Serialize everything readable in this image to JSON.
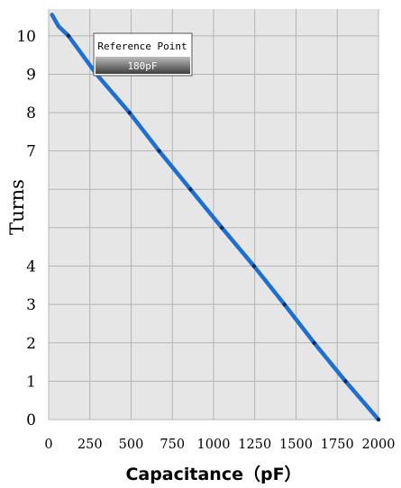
{
  "chart_data": {
    "type": "line",
    "title": "",
    "xlabel": "Capacitance（pF）",
    "ylabel": "Turns",
    "xlim": [
      0,
      2000
    ],
    "ylim": [
      0,
      10.7
    ],
    "grid": true,
    "x_ticks": [
      "0",
      "250",
      "500",
      "750",
      "1000",
      "1250",
      "1500",
      "1750",
      "2000"
    ],
    "y_ticks": [
      {
        "value": 0,
        "label": "0"
      },
      {
        "value": 1,
        "label": "1"
      },
      {
        "value": 2,
        "label": "2"
      },
      {
        "value": 3,
        "label": "3"
      },
      {
        "value": 4,
        "label": "4"
      },
      {
        "value": 5,
        "label": ""
      },
      {
        "value": 6,
        "label": ""
      },
      {
        "value": 7,
        "label": "7"
      },
      {
        "value": 8,
        "label": "8"
      },
      {
        "value": 9,
        "label": "9"
      },
      {
        "value": 10,
        "label": "10"
      }
    ],
    "series": [
      {
        "color": "#1f6fd1",
        "points": [
          {
            "x": 20,
            "y": 10.55
          },
          {
            "x": 60,
            "y": 10.25
          },
          {
            "x": 120,
            "y": 10.0
          },
          {
            "x": 290,
            "y": 9.0
          },
          {
            "x": 490,
            "y": 8.0
          },
          {
            "x": 670,
            "y": 7.0
          },
          {
            "x": 860,
            "y": 6.0
          },
          {
            "x": 1050,
            "y": 5.0
          },
          {
            "x": 1245,
            "y": 4.0
          },
          {
            "x": 1430,
            "y": 3.0
          },
          {
            "x": 1610,
            "y": 2.0
          },
          {
            "x": 1800,
            "y": 1.0
          },
          {
            "x": 2000,
            "y": 0.0
          }
        ]
      }
    ],
    "annotation": {
      "label": "Reference Point",
      "value": "180pF"
    }
  }
}
